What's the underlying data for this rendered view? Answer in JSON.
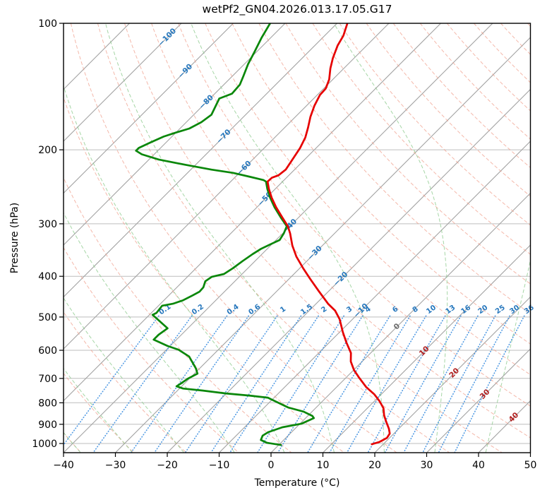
{
  "title": "wetPf2_GN04.2026.013.17.05.G17",
  "axes": {
    "x_label": "Temperature (°C)",
    "y_label": "Pressure (hPa)",
    "x_range": [
      -40,
      50
    ],
    "p_range": [
      100,
      1050
    ],
    "x_tick_values": [
      -40,
      -30,
      -20,
      -10,
      0,
      10,
      20,
      30,
      40,
      50
    ],
    "x_tick_labels": [
      "−40",
      "−30",
      "−20",
      "−10",
      "0",
      "10",
      "20",
      "30",
      "40",
      "50"
    ],
    "y_tick_values": [
      100,
      200,
      300,
      400,
      500,
      600,
      700,
      800,
      900,
      1000
    ],
    "y_tick_labels": [
      "100",
      "200",
      "300",
      "400",
      "500",
      "600",
      "700",
      "800",
      "900",
      "1000"
    ],
    "grid": true,
    "skew_degrees": 45
  },
  "chart_data": {
    "type": "line",
    "subtype": "skewt-log-p",
    "title": "wetPf2_GN04.2026.013.17.05.G17",
    "xlabel": "Temperature (°C)",
    "ylabel": "Pressure (hPa)",
    "xlim": [
      -40,
      50
    ],
    "ylim_hpa": [
      1050,
      100
    ],
    "series": [
      {
        "name": "temperature",
        "color": "#e60000",
        "points_p_t": [
          [
            100,
            -68
          ],
          [
            107,
            -66.4
          ],
          [
            113,
            -65.6
          ],
          [
            121,
            -64.1
          ],
          [
            128,
            -62.6
          ],
          [
            136,
            -60.7
          ],
          [
            143,
            -59.6
          ],
          [
            148,
            -59.5
          ],
          [
            157,
            -58.5
          ],
          [
            167,
            -57.1
          ],
          [
            177,
            -55.5
          ],
          [
            187,
            -54.1
          ],
          [
            198,
            -53.1
          ],
          [
            210,
            -52.4
          ],
          [
            223,
            -51.7
          ],
          [
            230,
            -52
          ],
          [
            233,
            -52.8
          ],
          [
            238,
            -52.9
          ],
          [
            248,
            -51.2
          ],
          [
            260,
            -49
          ],
          [
            274,
            -46.3
          ],
          [
            290,
            -43.1
          ],
          [
            304,
            -40.4
          ],
          [
            316,
            -38.6
          ],
          [
            338,
            -35.8
          ],
          [
            359,
            -32.9
          ],
          [
            383,
            -29.3
          ],
          [
            406,
            -25.9
          ],
          [
            434,
            -21.9
          ],
          [
            465,
            -17.7
          ],
          [
            483,
            -15
          ],
          [
            506,
            -12.5
          ],
          [
            543,
            -9.4
          ],
          [
            575,
            -6.7
          ],
          [
            609,
            -3.8
          ],
          [
            638,
            -2.2
          ],
          [
            669,
            0.1
          ],
          [
            698,
            2.6
          ],
          [
            734,
            5.7
          ],
          [
            763,
            8.6
          ],
          [
            793,
            11
          ],
          [
            824,
            13.1
          ],
          [
            857,
            14.6
          ],
          [
            887,
            16.2
          ],
          [
            922,
            18.1
          ],
          [
            947,
            19.2
          ],
          [
            970,
            19.5
          ],
          [
            992,
            18.8
          ],
          [
            1004,
            17.8
          ]
        ]
      },
      {
        "name": "dewpoint",
        "color": "#0a870a",
        "points_p_t": [
          [
            100,
            -82.9
          ],
          [
            108,
            -81.8
          ],
          [
            117,
            -80.4
          ],
          [
            125,
            -79.3
          ],
          [
            134,
            -77.8
          ],
          [
            140,
            -76.9
          ],
          [
            147,
            -76.7
          ],
          [
            151,
            -78.2
          ],
          [
            165,
            -76.6
          ],
          [
            172,
            -77.1
          ],
          [
            178,
            -78.2
          ],
          [
            182,
            -80
          ],
          [
            186,
            -81.6
          ],
          [
            192,
            -83
          ],
          [
            198,
            -84.2
          ],
          [
            201,
            -84.2
          ],
          [
            205,
            -82.4
          ],
          [
            211,
            -78.1
          ],
          [
            217,
            -72.1
          ],
          [
            223,
            -66
          ],
          [
            227,
            -61.2
          ],
          [
            232,
            -57.1
          ],
          [
            236,
            -54
          ],
          [
            238,
            -53.2
          ],
          [
            248,
            -51.5
          ],
          [
            260,
            -49.3
          ],
          [
            274,
            -46.6
          ],
          [
            290,
            -43.4
          ],
          [
            304,
            -40.6
          ],
          [
            316,
            -39.8
          ],
          [
            328,
            -39.3
          ],
          [
            336,
            -40.3
          ],
          [
            344,
            -41.2
          ],
          [
            354,
            -41.8
          ],
          [
            368,
            -42.4
          ],
          [
            383,
            -42.9
          ],
          [
            395,
            -43.5
          ],
          [
            401,
            -45.3
          ],
          [
            411,
            -45.7
          ],
          [
            425,
            -44.9
          ],
          [
            435,
            -44.8
          ],
          [
            444,
            -45.4
          ],
          [
            456,
            -46.3
          ],
          [
            465,
            -47.6
          ],
          [
            470,
            -49.3
          ],
          [
            489,
            -49
          ],
          [
            494,
            -49.4
          ],
          [
            522,
            -45.3
          ],
          [
            532,
            -43.9
          ],
          [
            551,
            -44.4
          ],
          [
            566,
            -44.4
          ],
          [
            586,
            -40.5
          ],
          [
            598,
            -37.7
          ],
          [
            621,
            -34.3
          ],
          [
            663,
            -30.7
          ],
          [
            682,
            -29.4
          ],
          [
            701,
            -30.3
          ],
          [
            720,
            -30.7
          ],
          [
            731,
            -31
          ],
          [
            740,
            -29.3
          ],
          [
            748,
            -25.2
          ],
          [
            760,
            -20.1
          ],
          [
            769,
            -15.2
          ],
          [
            778,
            -11.2
          ],
          [
            821,
            -5.4
          ],
          [
            840,
            -1.6
          ],
          [
            860,
            0.9
          ],
          [
            870,
            1.6
          ],
          [
            897,
            0.3
          ],
          [
            915,
            -2.7
          ],
          [
            940,
            -4.5
          ],
          [
            958,
            -4.9
          ],
          [
            981,
            -4.4
          ],
          [
            996,
            -2.7
          ],
          [
            1008,
            0.4
          ]
        ]
      }
    ],
    "isotherms": {
      "start": -110,
      "end": 50,
      "step": 10,
      "color": "#a2a2a2"
    },
    "isotherm_labels": [
      {
        "value": -100,
        "label": "−100",
        "p": 108
      },
      {
        "value": -90,
        "label": "−90",
        "p": 130
      },
      {
        "value": -80,
        "label": "−80",
        "p": 154
      },
      {
        "value": -70,
        "label": "−70",
        "p": 186
      },
      {
        "value": -60,
        "label": "−60",
        "p": 221
      },
      {
        "value": -50,
        "label": "−50",
        "p": 262
      },
      {
        "value": -40,
        "label": "−40",
        "p": 304
      },
      {
        "value": -30,
        "label": "−30",
        "p": 352
      },
      {
        "value": -20,
        "label": "−20",
        "p": 406
      },
      {
        "value": -10,
        "label": "−10",
        "p": 483
      },
      {
        "value": 0,
        "label": "0",
        "p": 527
      },
      {
        "value": 10,
        "label": "10",
        "p": 603
      },
      {
        "value": 20,
        "label": "20",
        "p": 680
      },
      {
        "value": 30,
        "label": "30",
        "p": 764
      },
      {
        "value": 40,
        "label": "40",
        "p": 867
      }
    ],
    "isotherm_label_colors": {
      "negative": "#2677bd",
      "zero": "#6e6e6e",
      "positive": "#b22222"
    },
    "dry_adiabats": {
      "start_c": -40,
      "end_c": 190,
      "step": 10,
      "color": "#f0a08e",
      "style": "dashed"
    },
    "moist_adiabats": {
      "start_c": -40,
      "end_c": 50,
      "step": 10,
      "color": "#90cc90",
      "style": "dashed"
    },
    "mixing_ratio": {
      "values_g_kg": [
        0.1,
        0.2,
        0.4,
        0.6,
        1,
        1.5,
        2,
        3,
        4,
        6,
        8,
        10,
        13,
        16,
        20,
        25,
        30,
        36
      ],
      "labels": [
        "0.1",
        "0.2",
        "0.4",
        "0.6",
        "1",
        "1.5",
        "2",
        "3",
        "4",
        "6",
        "8",
        "10",
        "13",
        "16",
        "20",
        "25",
        "30",
        "36"
      ],
      "color": "#3d8fe0",
      "label_color": "#2677bd",
      "style": "dotted",
      "label_p": 480,
      "top_p": 497,
      "bottom_p": 1050
    },
    "isobar_gridlines_hpa": [
      100,
      200,
      300,
      400,
      500,
      600,
      700,
      800,
      900,
      1000
    ]
  },
  "colors": {
    "background": "#ffffff",
    "spine": "#000000",
    "grid": "#bdbdbd",
    "temperature_curve": "#e60000",
    "dewpoint_curve": "#0a870a"
  }
}
